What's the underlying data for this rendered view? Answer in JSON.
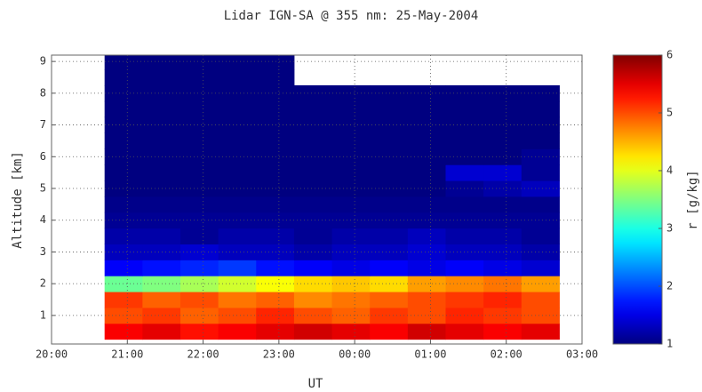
{
  "chart_data": {
    "type": "heatmap",
    "title": "Lidar IGN-SA @ 355 nm: 25-May-2004",
    "xlabel": "UT",
    "ylabel": "Altitude [km]",
    "colorbar_label": "r [g/kg]",
    "x": [
      20.95,
      21.45,
      21.95,
      22.45,
      22.95,
      23.45,
      23.95,
      24.45,
      24.95,
      25.45,
      25.95,
      26.45
    ],
    "y": [
      0.5,
      1.0,
      1.5,
      2.0,
      2.5,
      3.0,
      3.5,
      4.0,
      4.5,
      5.0,
      5.5,
      6.0,
      6.5,
      7.0,
      7.5,
      8.0,
      8.5,
      9.0
    ],
    "values": [
      [
        5.4,
        5.5,
        5.3,
        5.4,
        5.5,
        5.6,
        5.5,
        5.4,
        5.6,
        5.5,
        5.4,
        5.5
      ],
      [
        5.0,
        5.1,
        4.9,
        5.0,
        5.2,
        5.0,
        4.9,
        5.1,
        5.0,
        5.2,
        5.1,
        5.0
      ],
      [
        5.1,
        4.9,
        5.0,
        4.8,
        4.9,
        4.7,
        4.8,
        4.9,
        5.0,
        5.1,
        5.2,
        5.0
      ],
      [
        3.4,
        3.5,
        3.7,
        3.9,
        4.1,
        4.3,
        4.4,
        4.3,
        4.6,
        4.7,
        4.8,
        4.6
      ],
      [
        1.6,
        1.7,
        1.8,
        1.9,
        1.7,
        1.6,
        1.5,
        1.6,
        1.5,
        1.6,
        1.5,
        1.4
      ],
      [
        1.3,
        1.3,
        1.4,
        1.3,
        1.3,
        1.2,
        1.3,
        1.3,
        1.4,
        1.3,
        1.3,
        1.2
      ],
      [
        1.2,
        1.2,
        1.1,
        1.2,
        1.2,
        1.1,
        1.2,
        1.2,
        1.3,
        1.2,
        1.2,
        1.1
      ],
      [
        1.1,
        1.1,
        1.1,
        1.1,
        1.1,
        1.1,
        1.1,
        1.1,
        1.1,
        1.1,
        1.1,
        1.1
      ],
      [
        1.05,
        1.05,
        1.05,
        1.05,
        1.05,
        1.05,
        1.05,
        1.05,
        1.05,
        1.05,
        1.05,
        1.05
      ],
      [
        1.0,
        1.0,
        1.0,
        1.0,
        1.0,
        1.0,
        1.0,
        1.0,
        1.0,
        1.1,
        1.2,
        1.3
      ],
      [
        1.0,
        1.0,
        1.0,
        1.0,
        1.0,
        1.0,
        1.0,
        1.0,
        1.0,
        1.4,
        1.4,
        1.1
      ],
      [
        1.0,
        1.0,
        1.0,
        1.0,
        1.0,
        1.0,
        1.0,
        1.0,
        1.0,
        1.0,
        1.0,
        1.1
      ],
      [
        1.0,
        1.0,
        1.0,
        1.0,
        1.0,
        1.0,
        1.0,
        1.0,
        1.0,
        1.0,
        1.0,
        1.0
      ],
      [
        1.0,
        1.0,
        1.0,
        1.0,
        1.0,
        1.0,
        1.0,
        1.0,
        1.0,
        1.0,
        1.0,
        1.0
      ],
      [
        1.0,
        1.0,
        1.0,
        1.0,
        1.0,
        1.0,
        1.0,
        1.0,
        1.0,
        1.0,
        1.0,
        1.0
      ],
      [
        1.0,
        1.0,
        1.0,
        1.0,
        1.0,
        1.0,
        1.0,
        1.0,
        1.0,
        1.0,
        1.0,
        1.0
      ],
      [
        1.0,
        1.0,
        1.0,
        1.0,
        1.0,
        null,
        null,
        null,
        null,
        null,
        null,
        null
      ],
      [
        1.0,
        1.0,
        1.0,
        1.0,
        1.0,
        null,
        null,
        null,
        null,
        null,
        null,
        null
      ]
    ],
    "xlim": [
      20,
      27
    ],
    "xticks": [
      {
        "value": 20,
        "label": "20:00"
      },
      {
        "value": 21,
        "label": "21:00"
      },
      {
        "value": 22,
        "label": "22:00"
      },
      {
        "value": 23,
        "label": "23:00"
      },
      {
        "value": 24,
        "label": "00:00"
      },
      {
        "value": 25,
        "label": "01:00"
      },
      {
        "value": 26,
        "label": "02:00"
      },
      {
        "value": 27,
        "label": "03:00"
      }
    ],
    "ylim": [
      0.1,
      9.2
    ],
    "yticks": [
      1,
      2,
      3,
      4,
      5,
      6,
      7,
      8,
      9
    ],
    "clim": [
      1,
      6
    ],
    "cticks": [
      1,
      2,
      3,
      4,
      5,
      6
    ],
    "colormap": "jet",
    "grid": true
  }
}
